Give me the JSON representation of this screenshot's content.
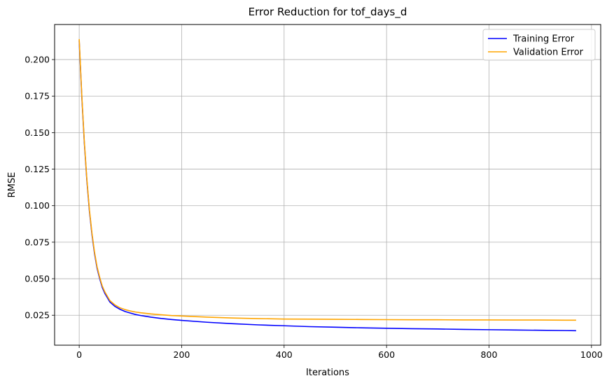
{
  "chart_data": {
    "type": "line",
    "title": "Error Reduction for tof_days_d",
    "xlabel": "Iterations",
    "ylabel": "RMSE",
    "xlim": [
      -48,
      1018
    ],
    "ylim": [
      0.0045,
      0.224
    ],
    "xticks": [
      0,
      200,
      400,
      600,
      800,
      1000
    ],
    "yticks": [
      0.025,
      0.05,
      0.075,
      0.1,
      0.125,
      0.15,
      0.175,
      0.2
    ],
    "xtick_labels": [
      "0",
      "200",
      "400",
      "600",
      "800",
      "1000"
    ],
    "ytick_labels": [
      "0.025",
      "0.050",
      "0.075",
      "0.100",
      "0.125",
      "0.150",
      "0.175",
      "0.200"
    ],
    "grid": true,
    "legend_position": "top-right",
    "series": [
      {
        "name": "Training Error",
        "color": "#0000ff",
        "x": [
          0,
          5,
          10,
          15,
          20,
          25,
          30,
          35,
          40,
          45,
          50,
          55,
          60,
          70,
          80,
          90,
          100,
          110,
          120,
          140,
          160,
          180,
          200,
          250,
          300,
          350,
          400,
          450,
          500,
          550,
          600,
          650,
          700,
          750,
          800,
          850,
          900,
          950,
          970
        ],
        "y": [
          0.213,
          0.175,
          0.143,
          0.117,
          0.096,
          0.08,
          0.067,
          0.057,
          0.05,
          0.044,
          0.04,
          0.037,
          0.034,
          0.031,
          0.029,
          0.0275,
          0.0265,
          0.0255,
          0.0248,
          0.0237,
          0.0228,
          0.0221,
          0.0215,
          0.0202,
          0.0192,
          0.0184,
          0.0178,
          0.0172,
          0.0168,
          0.0164,
          0.0161,
          0.0158,
          0.0156,
          0.0153,
          0.0151,
          0.0149,
          0.0147,
          0.0145,
          0.0144
        ]
      },
      {
        "name": "Validation Error",
        "color": "#ffa500",
        "x": [
          0,
          5,
          10,
          15,
          20,
          25,
          30,
          35,
          40,
          45,
          50,
          55,
          60,
          70,
          80,
          90,
          100,
          110,
          120,
          140,
          160,
          180,
          200,
          250,
          300,
          350,
          400,
          450,
          500,
          550,
          600,
          650,
          700,
          750,
          800,
          850,
          900,
          950,
          970
        ],
        "y": [
          0.214,
          0.176,
          0.144,
          0.118,
          0.097,
          0.081,
          0.068,
          0.058,
          0.051,
          0.045,
          0.041,
          0.038,
          0.035,
          0.032,
          0.03,
          0.0288,
          0.0279,
          0.0272,
          0.0267,
          0.0259,
          0.0253,
          0.0248,
          0.0245,
          0.0237,
          0.0231,
          0.0227,
          0.0224,
          0.0223,
          0.0222,
          0.0221,
          0.022,
          0.0219,
          0.0219,
          0.0218,
          0.0218,
          0.0217,
          0.0217,
          0.0216,
          0.0216
        ]
      }
    ]
  }
}
